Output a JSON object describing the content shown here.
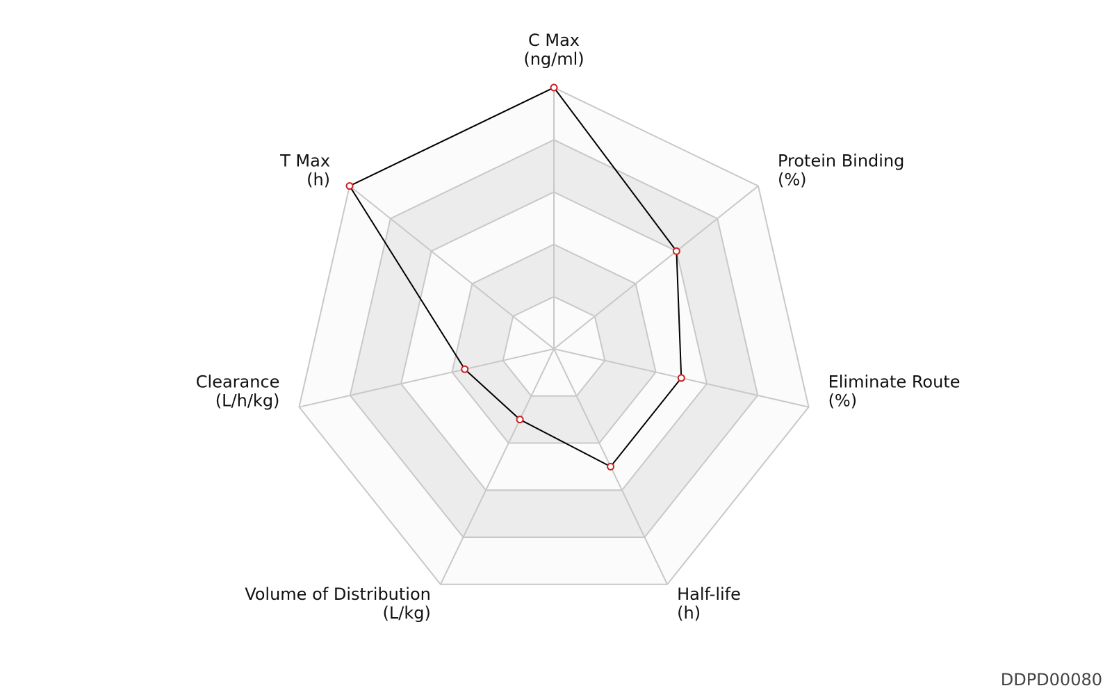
{
  "chart_data": {
    "type": "radar",
    "axes": [
      {
        "name": "C Max",
        "unit": "(ng/ml)"
      },
      {
        "name": "Protein Binding",
        "unit": "(%)"
      },
      {
        "name": "Eliminate Route",
        "unit": "(%)"
      },
      {
        "name": "Half-life",
        "unit": "(h)"
      },
      {
        "name": "Volume of Distribution",
        "unit": "(L/kg)"
      },
      {
        "name": "Clearance",
        "unit": "(L/h/kg)"
      },
      {
        "name": "T Max",
        "unit": "(h)"
      }
    ],
    "levels": 5,
    "range": [
      0,
      1
    ],
    "series": [
      {
        "values": [
          1.0,
          0.6,
          0.5,
          0.5,
          0.3,
          0.35,
          1.0
        ]
      }
    ],
    "colors": {
      "line": "#000000",
      "marker_stroke": "#cc2222",
      "marker_fill": "#ffffff",
      "grid": "#c8c8c8",
      "band_light": "#fbfbfb",
      "band_dark": "#ececec"
    }
  },
  "watermark": "DDPD00080"
}
